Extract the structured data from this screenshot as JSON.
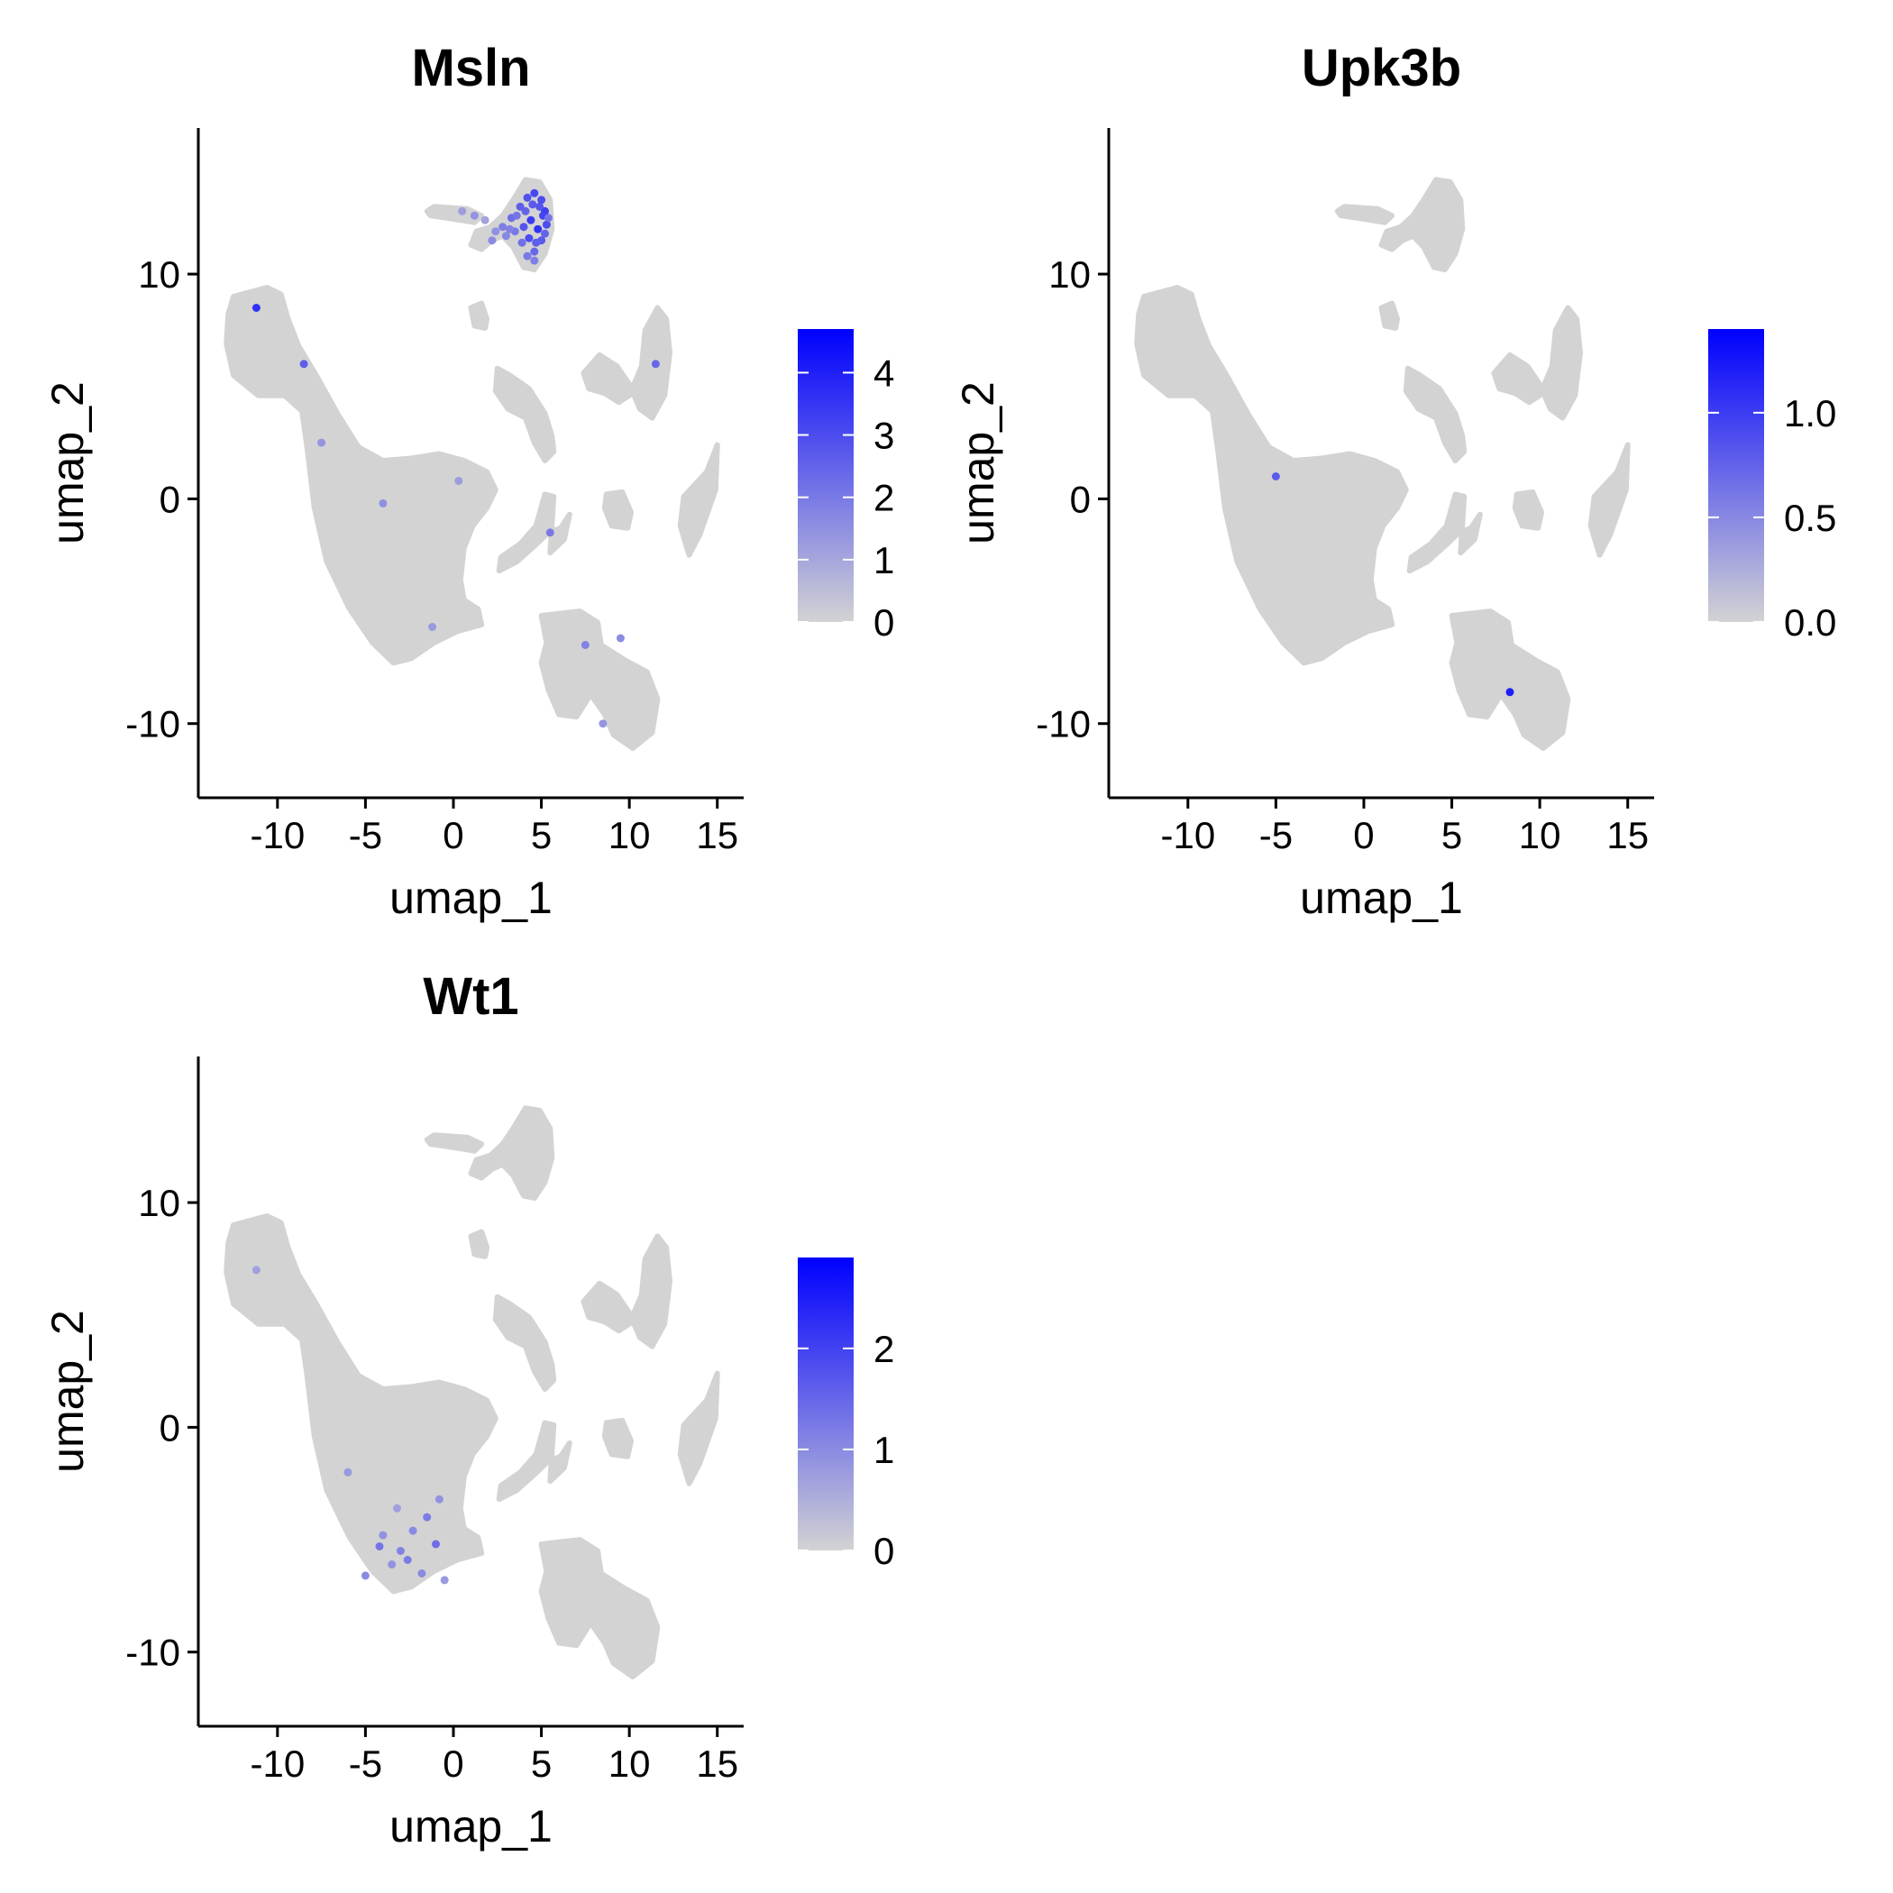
{
  "figure": {
    "background": "#ffffff"
  },
  "chart_data": [
    {
      "type": "scatter",
      "title": "Msln",
      "xlabel": "umap_1",
      "ylabel": "umap_2",
      "xlim": [
        -14.5,
        16.5
      ],
      "ylim": [
        -13.3,
        16.5
      ],
      "xticks": [
        -10,
        -5,
        0,
        5,
        10,
        15
      ],
      "xtick_labels": [
        "-10",
        "-5",
        "0",
        "5",
        "10",
        "15"
      ],
      "yticks": [
        -10,
        0,
        10
      ],
      "ytick_labels": [
        "-10",
        "0",
        "10"
      ],
      "colorbar": {
        "min": 0,
        "max": 4.7,
        "ticks": [
          0,
          1,
          2,
          3,
          4
        ],
        "tick_labels": [
          "0",
          "1",
          "2",
          "3",
          "4"
        ],
        "low_color": "#d3d3d3",
        "high_color": "#0000ff"
      },
      "highlight": [
        [
          2.2,
          11.5,
          1.6
        ],
        [
          2.8,
          12.1,
          1.9
        ],
        [
          3.3,
          12.5,
          2.3
        ],
        [
          3.8,
          13.0,
          2.6
        ],
        [
          4.2,
          13.4,
          2.9
        ],
        [
          4.6,
          13.6,
          3.1
        ],
        [
          5.0,
          13.3,
          3.0
        ],
        [
          5.2,
          12.8,
          3.3
        ],
        [
          5.3,
          12.2,
          3.0
        ],
        [
          5.0,
          11.5,
          2.7
        ],
        [
          4.6,
          11.0,
          2.4
        ],
        [
          4.2,
          10.8,
          2.0
        ],
        [
          3.9,
          11.4,
          2.2
        ],
        [
          3.5,
          11.9,
          2.0
        ],
        [
          4.4,
          12.4,
          3.4
        ],
        [
          4.8,
          12.0,
          3.6
        ],
        [
          5.1,
          12.6,
          3.2
        ],
        [
          4.0,
          12.1,
          2.8
        ],
        [
          3.0,
          11.7,
          1.7
        ],
        [
          2.4,
          11.9,
          1.5
        ],
        [
          4.7,
          11.4,
          2.6
        ],
        [
          4.3,
          11.6,
          3.0
        ],
        [
          5.2,
          11.8,
          2.5
        ],
        [
          4.9,
          13.0,
          2.8
        ],
        [
          4.5,
          13.1,
          2.7
        ],
        [
          3.6,
          12.6,
          2.1
        ],
        [
          4.1,
          12.8,
          2.5
        ],
        [
          3.2,
          12.0,
          1.8
        ],
        [
          5.4,
          12.5,
          2.1
        ],
        [
          4.6,
          10.6,
          1.9
        ],
        [
          0.5,
          12.8,
          1.2
        ],
        [
          1.2,
          12.6,
          1.4
        ],
        [
          1.8,
          12.4,
          1.1
        ],
        [
          -11.2,
          8.5,
          3.6
        ],
        [
          -8.5,
          6.0,
          2.6
        ],
        [
          -7.5,
          2.5,
          1.4
        ],
        [
          -4.0,
          -0.2,
          1.5
        ],
        [
          0.3,
          0.8,
          1.2
        ],
        [
          5.5,
          -1.5,
          2.0
        ],
        [
          11.5,
          6.0,
          2.4
        ],
        [
          7.5,
          -6.5,
          1.8
        ],
        [
          9.5,
          -6.2,
          1.6
        ],
        [
          -1.2,
          -5.7,
          1.3
        ],
        [
          8.5,
          -10.0,
          1.4
        ]
      ]
    },
    {
      "type": "scatter",
      "title": "Upk3b",
      "xlabel": "umap_1",
      "ylabel": "umap_2",
      "xlim": [
        -14.5,
        16.5
      ],
      "ylim": [
        -13.3,
        16.5
      ],
      "xticks": [
        -10,
        -5,
        0,
        5,
        10,
        15
      ],
      "xtick_labels": [
        "-10",
        "-5",
        "0",
        "5",
        "10",
        "15"
      ],
      "yticks": [
        -10,
        0,
        10
      ],
      "ytick_labels": [
        "-10",
        "0",
        "10"
      ],
      "colorbar": {
        "min": 0,
        "max": 1.4,
        "ticks": [
          0,
          0.5,
          1.0
        ],
        "tick_labels": [
          "0.0",
          "0.5",
          "1.0"
        ],
        "low_color": "#d3d3d3",
        "high_color": "#0000ff"
      },
      "highlight": [
        [
          -5.0,
          1.0,
          0.8
        ],
        [
          8.3,
          -8.6,
          1.2
        ]
      ]
    },
    {
      "type": "scatter",
      "title": "Wt1",
      "xlabel": "umap_1",
      "ylabel": "umap_2",
      "xlim": [
        -14.5,
        16.5
      ],
      "ylim": [
        -13.3,
        16.5
      ],
      "xticks": [
        -10,
        -5,
        0,
        5,
        10,
        15
      ],
      "xtick_labels": [
        "-10",
        "-5",
        "0",
        "5",
        "10",
        "15"
      ],
      "yticks": [
        -10,
        0,
        10
      ],
      "ytick_labels": [
        "-10",
        "0",
        "10"
      ],
      "colorbar": {
        "min": 0,
        "max": 2.9,
        "ticks": [
          0,
          1,
          2
        ],
        "tick_labels": [
          "0",
          "1",
          "2"
        ],
        "low_color": "#d3d3d3",
        "high_color": "#0000ff"
      },
      "highlight": [
        [
          -1.5,
          -4.0,
          1.2
        ],
        [
          -2.3,
          -4.6,
          1.0
        ],
        [
          -1.0,
          -5.2,
          1.4
        ],
        [
          -3.0,
          -5.5,
          1.1
        ],
        [
          -4.2,
          -5.3,
          1.3
        ],
        [
          -3.5,
          -6.1,
          0.9
        ],
        [
          -1.8,
          -6.5,
          1.0
        ],
        [
          -0.5,
          -6.8,
          0.8
        ],
        [
          -4.0,
          -4.8,
          0.9
        ],
        [
          -2.6,
          -5.9,
          1.2
        ],
        [
          -6.0,
          -2.0,
          0.8
        ],
        [
          -3.2,
          -3.6,
          0.7
        ],
        [
          -0.8,
          -3.2,
          0.9
        ],
        [
          -11.2,
          7.0,
          0.7
        ],
        [
          -5.0,
          -6.6,
          1.0
        ]
      ]
    }
  ]
}
